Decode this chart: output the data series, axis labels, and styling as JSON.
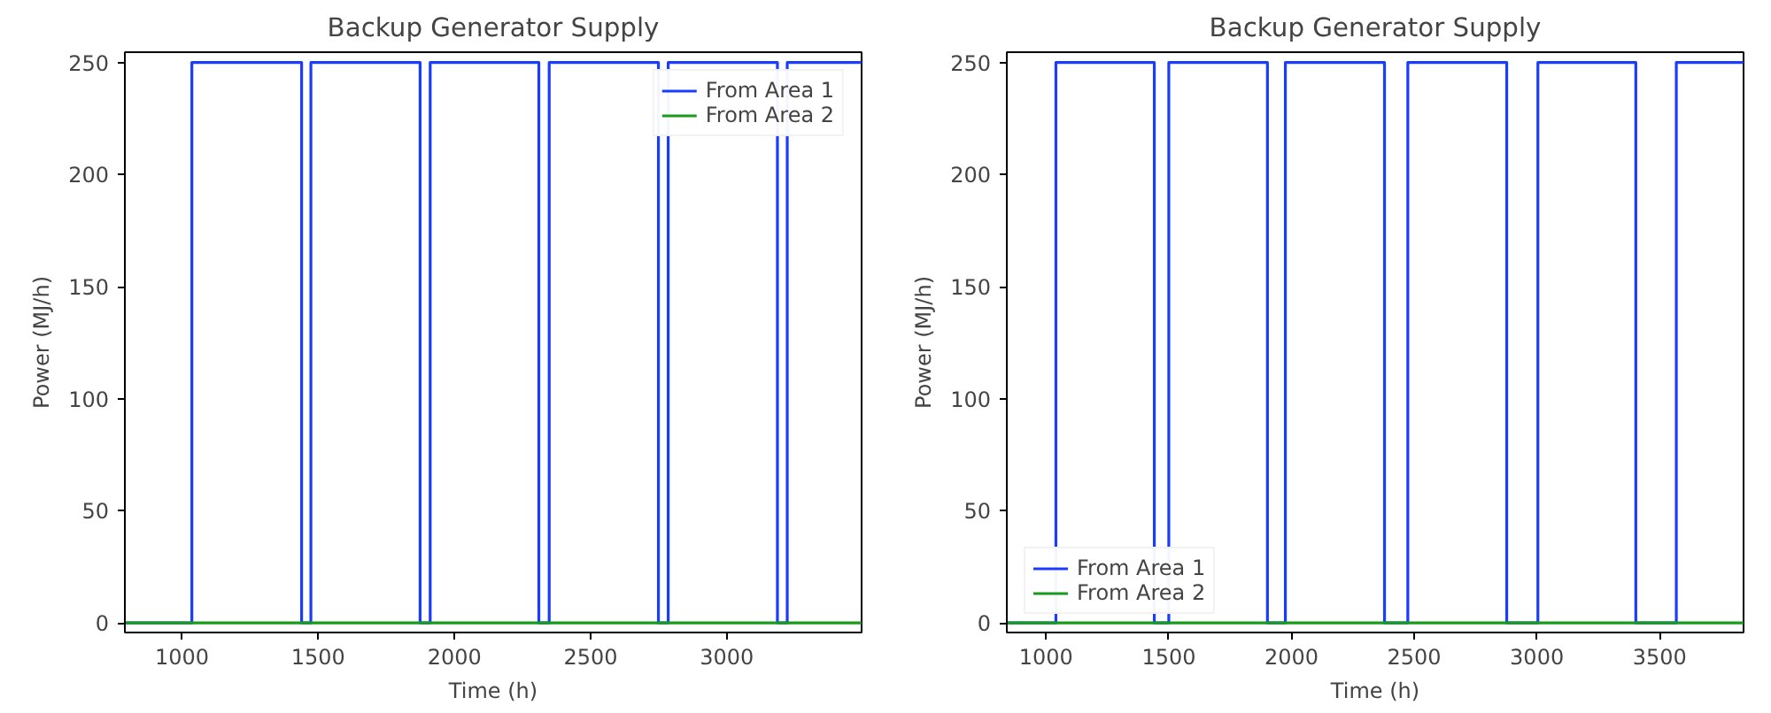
{
  "chart_data": [
    {
      "type": "step",
      "title": "Backup Generator Supply",
      "xlabel": "Time (h)",
      "ylabel": "Power (MJ/h)",
      "xlim": [
        790,
        3495
      ],
      "ylim": [
        -4.3,
        254.6
      ],
      "xticks": [
        1000,
        1500,
        2000,
        2500,
        3000
      ],
      "yticks": [
        0,
        50,
        100,
        150,
        200,
        250
      ],
      "grid": false,
      "legend": "top right",
      "series": [
        {
          "name": "From Area 1",
          "color": "#1a3cff",
          "x": [
            790,
            1036,
            1439,
            1473,
            1874,
            1911,
            2310,
            2348,
            2749,
            2785,
            3186,
            3222,
            3495
          ],
          "values": [
            0,
            250,
            0,
            250,
            0,
            250,
            0,
            250,
            0,
            250,
            0,
            250,
            250
          ]
        },
        {
          "name": "From Area 2",
          "color": "#1a9a1a",
          "x": [
            790,
            3495
          ],
          "values": [
            0,
            0
          ]
        }
      ]
    },
    {
      "type": "step",
      "title": "Backup Generator Supply",
      "xlabel": "Time (h)",
      "ylabel": "Power (MJ/h)",
      "xlim": [
        840,
        3842
      ],
      "ylim": [
        -4.3,
        254.6
      ],
      "xticks": [
        1000,
        1500,
        2000,
        2500,
        3000,
        3500
      ],
      "yticks": [
        0,
        50,
        100,
        150,
        200,
        250
      ],
      "grid": false,
      "legend": "bottom left",
      "series": [
        {
          "name": "From Area 1",
          "color": "#1a3cff",
          "x": [
            840,
            1040,
            1441,
            1500,
            1902,
            1975,
            2379,
            2474,
            2877,
            3004,
            3403,
            3568,
            3842
          ],
          "values": [
            0,
            250,
            0,
            250,
            0,
            250,
            0,
            250,
            0,
            250,
            0,
            250,
            250
          ]
        },
        {
          "name": "From Area 2",
          "color": "#1a9a1a",
          "x": [
            840,
            3842
          ],
          "values": [
            0,
            0
          ]
        }
      ]
    }
  ]
}
